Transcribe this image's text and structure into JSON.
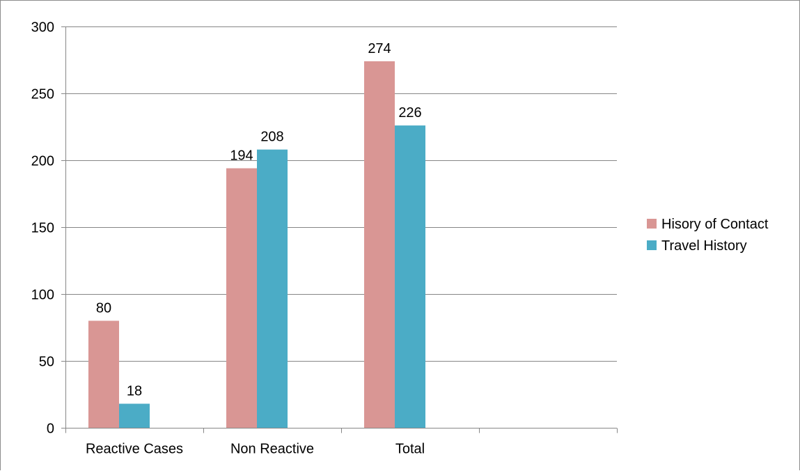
{
  "chart_data": {
    "type": "bar",
    "title": "",
    "xlabel": "",
    "ylabel": "",
    "categories": [
      "Reactive Cases",
      "Non Reactive",
      "Total",
      ""
    ],
    "series": [
      {
        "name": "Hisory of Contact",
        "values": [
          80,
          194,
          274,
          null
        ],
        "color": "#d99694"
      },
      {
        "name": "Travel History",
        "values": [
          18,
          208,
          226,
          null
        ],
        "color": "#4bacc6"
      }
    ],
    "ylim": [
      0,
      300
    ],
    "yticks": [
      "0",
      "50",
      "100",
      "150",
      "200",
      "250",
      "300"
    ],
    "data_labels": true,
    "grid": true,
    "legend_position": "right",
    "gridline_color": "#868686"
  }
}
